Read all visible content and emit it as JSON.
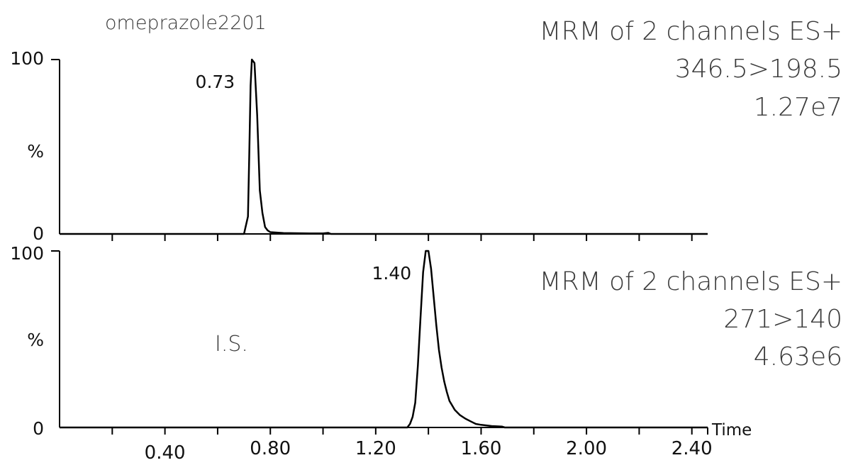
{
  "chart_data": [
    {
      "type": "line",
      "title": "omeprazole2201",
      "info_lines": [
        "MRM of 2 channels ES+",
        "346.5>198.5",
        "1.27e7"
      ],
      "ylabel": "%",
      "y_ticks": [
        "0",
        "100"
      ],
      "ylim": [
        0,
        100
      ],
      "xlim": [
        0.0,
        2.46
      ],
      "peak_label": {
        "text": "0.73",
        "x": 0.73
      },
      "annotation": "",
      "series": [
        {
          "x": [
            0.0,
            0.7,
            0.715,
            0.72,
            0.725,
            0.73,
            0.74,
            0.75,
            0.76,
            0.77,
            0.78,
            0.79,
            0.8,
            0.85,
            0.9,
            0.95,
            1.0,
            1.02,
            1.03,
            2.46
          ],
          "values": [
            0,
            0,
            10,
            45,
            85,
            100,
            98,
            68,
            25,
            12,
            4,
            2,
            1,
            0.5,
            0.4,
            0.3,
            0.3,
            0.6,
            0,
            0
          ]
        }
      ]
    },
    {
      "type": "line",
      "title": "",
      "info_lines": [
        "MRM of 2 channels ES+",
        "271>140",
        "4.63e6"
      ],
      "ylabel": "%",
      "y_ticks": [
        "0",
        "100"
      ],
      "ylim": [
        0,
        100
      ],
      "xlim": [
        0.0,
        2.46
      ],
      "xlabel": "Time",
      "x_ticks": [
        "0.40",
        "0.80",
        "1.20",
        "1.60",
        "2.00",
        "2.40"
      ],
      "x_tick_values": [
        0.4,
        0.8,
        1.2,
        1.6,
        2.0,
        2.4
      ],
      "peak_label": {
        "text": "1.40",
        "x": 1.4
      },
      "annotation": "I.S.",
      "series": [
        {
          "x": [
            0.0,
            1.32,
            1.33,
            1.34,
            1.35,
            1.36,
            1.37,
            1.38,
            1.39,
            1.4,
            1.41,
            1.42,
            1.43,
            1.44,
            1.45,
            1.46,
            1.47,
            1.48,
            1.5,
            1.52,
            1.54,
            1.56,
            1.58,
            1.6,
            1.64,
            1.68,
            1.69,
            2.46
          ],
          "values": [
            0,
            0,
            2,
            6,
            14,
            35,
            62,
            88,
            100,
            100,
            90,
            74,
            58,
            44,
            34,
            26,
            20,
            15,
            10,
            7,
            5,
            3.5,
            2,
            1.5,
            0.8,
            0.5,
            0,
            0
          ]
        }
      ]
    }
  ]
}
